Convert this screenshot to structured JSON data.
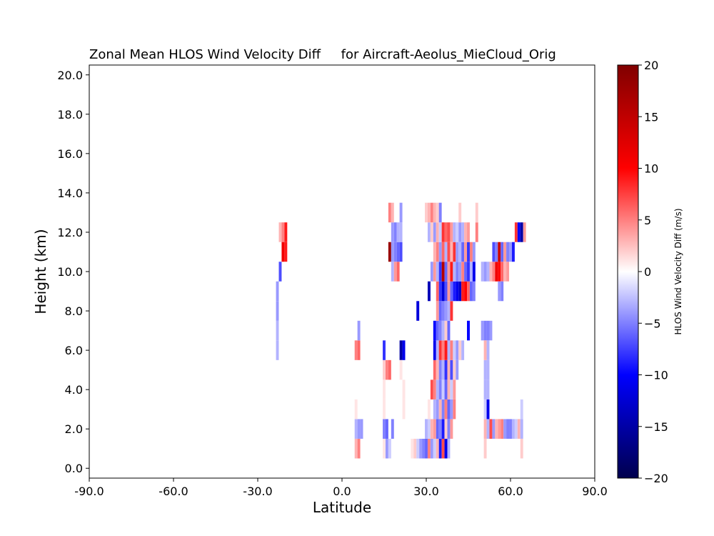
{
  "chart_data": {
    "type": "heatmap",
    "title": "Zonal Mean HLOS Wind Velocity Diff     for Aircraft-Aeolus_MieCloud_Orig",
    "xlabel": "Latitude",
    "ylabel": "Height (km)",
    "xlim": [
      -90,
      90
    ],
    "ylim": [
      -0.5,
      20.5
    ],
    "xticks": [
      "-90.0",
      "-60.0",
      "-30.0",
      "0.0",
      "30.0",
      "60.0",
      "90.0"
    ],
    "xtick_values": [
      -90,
      -60,
      -30,
      0,
      30,
      60,
      90
    ],
    "yticks": [
      "0.0",
      "2.0",
      "4.0",
      "6.0",
      "8.0",
      "10.0",
      "12.0",
      "14.0",
      "16.0",
      "18.0",
      "20.0"
    ],
    "ytick_values": [
      0,
      2,
      4,
      6,
      8,
      10,
      12,
      14,
      16,
      18,
      20
    ],
    "grid": false,
    "lat_bin_width": 1,
    "height_bin_width": 1,
    "cells_note_format": "[latitude, height_km, value_m_per_s]",
    "cells": [
      [
        -23,
        6,
        -3
      ],
      [
        -23,
        7,
        -3
      ],
      [
        -23,
        8,
        -4
      ],
      [
        -23,
        9,
        -4
      ],
      [
        -22,
        10,
        -7
      ],
      [
        -22,
        12,
        3
      ],
      [
        -21,
        12,
        5
      ],
      [
        -20,
        12,
        9
      ],
      [
        -21,
        11,
        11
      ],
      [
        -20,
        11,
        9
      ],
      [
        5,
        1,
        3
      ],
      [
        6,
        1,
        5
      ],
      [
        5,
        2,
        -3
      ],
      [
        6,
        2,
        -4
      ],
      [
        5,
        3,
        1
      ],
      [
        7,
        2,
        -4
      ],
      [
        5,
        6,
        5
      ],
      [
        6,
        6,
        6
      ],
      [
        6,
        7,
        -4
      ],
      [
        15,
        1,
        1
      ],
      [
        16,
        1,
        -4
      ],
      [
        17,
        1,
        -2
      ],
      [
        15,
        2,
        -5
      ],
      [
        16,
        2,
        -6
      ],
      [
        18,
        2,
        -5
      ],
      [
        15,
        3,
        1
      ],
      [
        15,
        5,
        2
      ],
      [
        16,
        5,
        5
      ],
      [
        17,
        5,
        6
      ],
      [
        15,
        6,
        -8
      ],
      [
        15,
        4,
        1
      ],
      [
        18,
        10,
        -3
      ],
      [
        19,
        10,
        4
      ],
      [
        20,
        10,
        6
      ],
      [
        17,
        11,
        18
      ],
      [
        18,
        11,
        -4
      ],
      [
        19,
        11,
        -5
      ],
      [
        20,
        11,
        -6
      ],
      [
        21,
        11,
        -7
      ],
      [
        18,
        12,
        -4
      ],
      [
        19,
        12,
        -5
      ],
      [
        20,
        12,
        -3
      ],
      [
        21,
        12,
        -3
      ],
      [
        17,
        13,
        5
      ],
      [
        18,
        13,
        3
      ],
      [
        21,
        13,
        -4
      ],
      [
        21,
        6,
        -15
      ],
      [
        22,
        6,
        -11
      ],
      [
        21,
        5,
        1
      ],
      [
        22,
        4,
        1
      ],
      [
        22,
        3,
        1
      ],
      [
        25,
        1,
        1
      ],
      [
        26,
        1,
        2
      ],
      [
        27,
        1,
        -2
      ],
      [
        28,
        1,
        -4
      ],
      [
        29,
        1,
        -5
      ],
      [
        30,
        1,
        -6
      ],
      [
        31,
        1,
        5
      ],
      [
        32,
        1,
        -4
      ],
      [
        33,
        1,
        -2
      ],
      [
        34,
        1,
        3
      ],
      [
        35,
        1,
        -9
      ],
      [
        36,
        1,
        7
      ],
      [
        37,
        1,
        -11
      ],
      [
        38,
        1,
        -3
      ],
      [
        30,
        2,
        -3
      ],
      [
        31,
        2,
        -2
      ],
      [
        32,
        2,
        3
      ],
      [
        33,
        2,
        4
      ],
      [
        34,
        2,
        -6
      ],
      [
        35,
        2,
        -5
      ],
      [
        36,
        2,
        -9
      ],
      [
        37,
        2,
        2
      ],
      [
        38,
        2,
        -5
      ],
      [
        39,
        2,
        4
      ],
      [
        31,
        3,
        1
      ],
      [
        33,
        3,
        -3
      ],
      [
        34,
        3,
        -4
      ],
      [
        35,
        3,
        3
      ],
      [
        36,
        3,
        -5
      ],
      [
        37,
        3,
        5
      ],
      [
        38,
        3,
        -6
      ],
      [
        39,
        3,
        -4
      ],
      [
        40,
        3,
        5
      ],
      [
        32,
        4,
        7
      ],
      [
        33,
        4,
        5
      ],
      [
        34,
        4,
        -3
      ],
      [
        35,
        4,
        -5
      ],
      [
        36,
        4,
        -2
      ],
      [
        37,
        4,
        -6
      ],
      [
        38,
        4,
        3
      ],
      [
        39,
        4,
        -2
      ],
      [
        40,
        4,
        4
      ],
      [
        33,
        5,
        6
      ],
      [
        34,
        5,
        3
      ],
      [
        35,
        5,
        -5
      ],
      [
        36,
        5,
        -3
      ],
      [
        37,
        5,
        -8
      ],
      [
        38,
        5,
        3
      ],
      [
        39,
        5,
        -7
      ],
      [
        40,
        5,
        2
      ],
      [
        41,
        5,
        -4
      ],
      [
        33,
        6,
        -11
      ],
      [
        34,
        6,
        -3
      ],
      [
        35,
        6,
        8
      ],
      [
        36,
        6,
        5
      ],
      [
        37,
        6,
        9
      ],
      [
        38,
        6,
        -3
      ],
      [
        39,
        6,
        5
      ],
      [
        40,
        6,
        -2
      ],
      [
        41,
        6,
        -4
      ],
      [
        42,
        6,
        2
      ],
      [
        43,
        6,
        -3
      ],
      [
        33,
        7,
        -10
      ],
      [
        34,
        7,
        -6
      ],
      [
        35,
        7,
        -5
      ],
      [
        36,
        7,
        -3
      ],
      [
        37,
        7,
        2
      ],
      [
        38,
        7,
        -6
      ],
      [
        45,
        7,
        -10
      ],
      [
        50,
        7,
        -4
      ],
      [
        51,
        7,
        -5
      ],
      [
        52,
        7,
        -5
      ],
      [
        53,
        7,
        -4
      ],
      [
        34,
        8,
        4
      ],
      [
        35,
        8,
        -6
      ],
      [
        36,
        8,
        -5
      ],
      [
        37,
        8,
        -4
      ],
      [
        38,
        8,
        -3
      ],
      [
        39,
        8,
        8
      ],
      [
        27,
        8,
        -12
      ],
      [
        31,
        9,
        -14
      ],
      [
        34,
        9,
        6
      ],
      [
        35,
        9,
        -8
      ],
      [
        36,
        9,
        -12
      ],
      [
        37,
        9,
        -7
      ],
      [
        38,
        9,
        4
      ],
      [
        39,
        9,
        -6
      ],
      [
        40,
        9,
        -9
      ],
      [
        41,
        9,
        -11
      ],
      [
        42,
        9,
        -13
      ],
      [
        43,
        9,
        9
      ],
      [
        44,
        9,
        10
      ],
      [
        45,
        9,
        6
      ],
      [
        46,
        9,
        -6
      ],
      [
        47,
        9,
        -5
      ],
      [
        32,
        10,
        -4
      ],
      [
        33,
        10,
        4
      ],
      [
        34,
        10,
        -3
      ],
      [
        35,
        10,
        -8
      ],
      [
        36,
        10,
        16
      ],
      [
        37,
        10,
        -6
      ],
      [
        38,
        10,
        4
      ],
      [
        39,
        10,
        9
      ],
      [
        40,
        10,
        -3
      ],
      [
        41,
        10,
        -5
      ],
      [
        42,
        10,
        -4
      ],
      [
        43,
        10,
        5
      ],
      [
        44,
        10,
        -6
      ],
      [
        45,
        10,
        -8
      ],
      [
        46,
        10,
        -3
      ],
      [
        47,
        10,
        -11
      ],
      [
        33,
        11,
        3
      ],
      [
        34,
        11,
        5
      ],
      [
        35,
        11,
        -4
      ],
      [
        36,
        11,
        6
      ],
      [
        37,
        11,
        -3
      ],
      [
        38,
        11,
        7
      ],
      [
        39,
        11,
        3
      ],
      [
        40,
        11,
        8
      ],
      [
        41,
        11,
        -4
      ],
      [
        42,
        11,
        -3
      ],
      [
        43,
        11,
        -6
      ],
      [
        44,
        11,
        4
      ],
      [
        45,
        11,
        -8
      ],
      [
        46,
        11,
        5
      ],
      [
        47,
        11,
        -4
      ],
      [
        31,
        12,
        -3
      ],
      [
        32,
        12,
        2
      ],
      [
        33,
        12,
        -4
      ],
      [
        34,
        12,
        3
      ],
      [
        35,
        12,
        -2
      ],
      [
        36,
        12,
        8
      ],
      [
        37,
        12,
        6
      ],
      [
        38,
        12,
        7
      ],
      [
        39,
        12,
        4
      ],
      [
        40,
        12,
        -3
      ],
      [
        41,
        12,
        -2
      ],
      [
        42,
        12,
        -4
      ],
      [
        43,
        12,
        -3
      ],
      [
        44,
        12,
        3
      ],
      [
        45,
        12,
        4
      ],
      [
        30,
        13,
        2
      ],
      [
        31,
        13,
        3
      ],
      [
        32,
        13,
        5
      ],
      [
        33,
        13,
        3
      ],
      [
        34,
        13,
        2
      ],
      [
        35,
        13,
        -5
      ],
      [
        42,
        13,
        2
      ],
      [
        51,
        2,
        3
      ],
      [
        52,
        2,
        -3
      ],
      [
        53,
        2,
        7
      ],
      [
        54,
        2,
        -4
      ],
      [
        55,
        2,
        3
      ],
      [
        56,
        2,
        4
      ],
      [
        57,
        2,
        5
      ],
      [
        58,
        2,
        -4
      ],
      [
        59,
        2,
        -5
      ],
      [
        60,
        2,
        -5
      ],
      [
        61,
        2,
        -3
      ],
      [
        62,
        2,
        -2
      ],
      [
        63,
        2,
        3
      ],
      [
        64,
        2,
        -3
      ],
      [
        51,
        3,
        -2
      ],
      [
        52,
        3,
        -11
      ],
      [
        64,
        3,
        -2
      ],
      [
        51,
        1,
        2
      ],
      [
        64,
        1,
        2
      ],
      [
        51,
        4,
        -3
      ],
      [
        52,
        4,
        -3
      ],
      [
        51,
        5,
        -3
      ],
      [
        52,
        5,
        -3
      ],
      [
        51,
        6,
        3
      ],
      [
        52,
        6,
        -3
      ],
      [
        50,
        10,
        -3
      ],
      [
        51,
        10,
        -4
      ],
      [
        52,
        10,
        -3
      ],
      [
        53,
        10,
        3
      ],
      [
        54,
        10,
        5
      ],
      [
        55,
        10,
        11
      ],
      [
        56,
        10,
        10
      ],
      [
        57,
        10,
        6
      ],
      [
        58,
        10,
        3
      ],
      [
        59,
        10,
        4
      ],
      [
        54,
        11,
        -7
      ],
      [
        55,
        11,
        -5
      ],
      [
        56,
        11,
        14
      ],
      [
        57,
        11,
        -6
      ],
      [
        58,
        11,
        4
      ],
      [
        59,
        11,
        -5
      ],
      [
        60,
        11,
        -4
      ],
      [
        61,
        11,
        -9
      ],
      [
        62,
        12,
        8
      ],
      [
        63,
        12,
        -10
      ],
      [
        64,
        12,
        -15
      ],
      [
        65,
        12,
        4
      ],
      [
        56,
        9,
        -4
      ],
      [
        57,
        9,
        -5
      ],
      [
        48,
        12,
        5
      ],
      [
        48,
        13,
        2
      ]
    ]
  },
  "colorbar": {
    "label": "HLOS Wind Velocity Diff (m/s)",
    "vmin": -20,
    "vmax": 20,
    "ticks": [
      "20",
      "15",
      "10",
      "5",
      "0",
      "−5",
      "−10",
      "−15",
      "−20"
    ],
    "tick_values": [
      20,
      15,
      10,
      5,
      0,
      -5,
      -10,
      -15,
      -20
    ],
    "colormap": "seismic",
    "color_stops": [
      "#00004d",
      "#0000ff",
      "#ffffff",
      "#ff0000",
      "#800000"
    ]
  }
}
